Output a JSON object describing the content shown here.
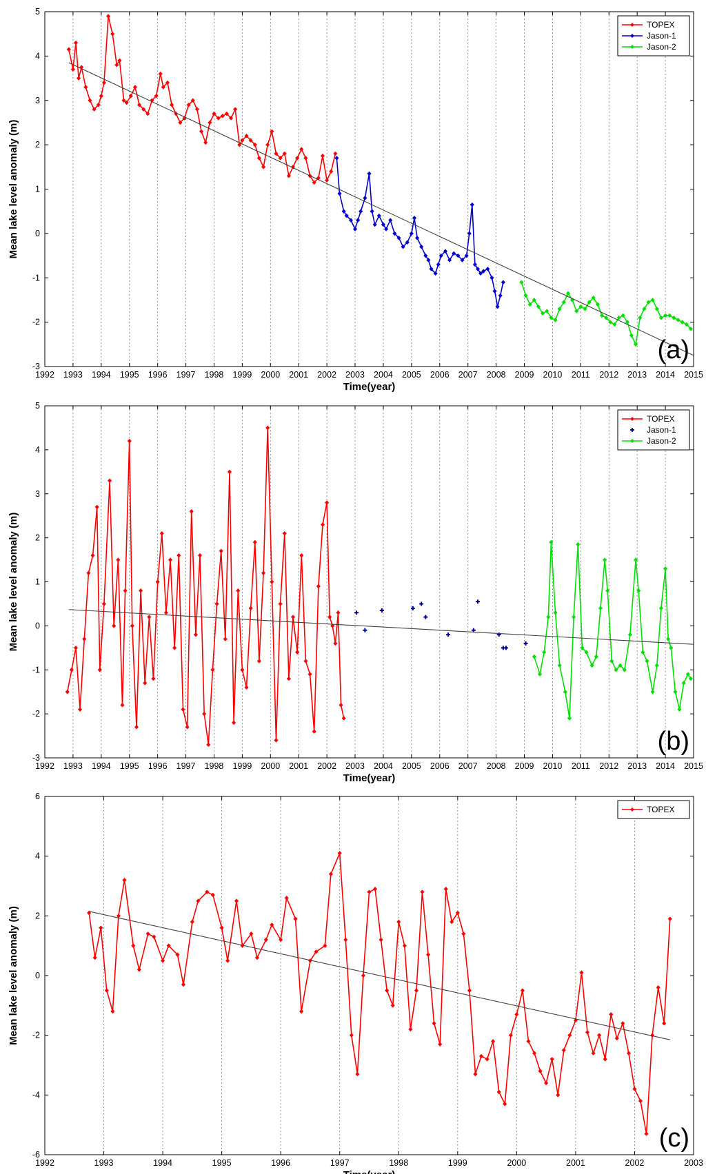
{
  "chart_data": [
    {
      "type": "line",
      "panel_label": "(a)",
      "xlabel": "Time(year)",
      "ylabel": "Mean lake level anomaly (m)",
      "xlim": [
        1992,
        2015
      ],
      "ylim": [
        -3,
        5
      ],
      "xticks": [
        1992,
        1993,
        1994,
        1995,
        1996,
        1997,
        1998,
        1999,
        2000,
        2001,
        2002,
        2003,
        2004,
        2005,
        2006,
        2007,
        2008,
        2009,
        2010,
        2011,
        2012,
        2013,
        2014,
        2015
      ],
      "yticks": [
        -3,
        -2,
        -1,
        0,
        1,
        2,
        3,
        4,
        5
      ],
      "grid": "vertical-dotted",
      "legend_position": "top-right",
      "series": [
        {
          "name": "TOPEX",
          "color": "#ff0000",
          "marker": "diamond",
          "line": true,
          "x": [
            1992.85,
            1993.0,
            1993.1,
            1993.2,
            1993.3,
            1993.45,
            1993.6,
            1993.75,
            1993.9,
            1994.0,
            1994.1,
            1994.25,
            1994.4,
            1994.55,
            1994.65,
            1994.8,
            1994.9,
            1995.05,
            1995.2,
            1995.35,
            1995.5,
            1995.65,
            1995.8,
            1995.95,
            1996.1,
            1996.2,
            1996.35,
            1996.5,
            1996.65,
            1996.8,
            1996.95,
            1997.1,
            1997.25,
            1997.4,
            1997.55,
            1997.7,
            1997.85,
            1998.0,
            1998.15,
            1998.3,
            1998.45,
            1998.6,
            1998.75,
            1998.9,
            1999.0,
            1999.15,
            1999.3,
            1999.45,
            1999.6,
            1999.75,
            1999.9,
            2000.05,
            2000.2,
            2000.35,
            2000.5,
            2000.65,
            2000.8,
            2000.95,
            2001.1,
            2001.25,
            2001.4,
            2001.55,
            2001.7,
            2001.85,
            2002.0,
            2002.15,
            2002.3
          ],
          "y": [
            4.15,
            3.7,
            4.3,
            3.5,
            3.75,
            3.3,
            3.0,
            2.8,
            2.9,
            3.1,
            3.4,
            4.9,
            4.5,
            3.8,
            3.9,
            3.0,
            2.95,
            3.1,
            3.3,
            2.9,
            2.8,
            2.7,
            3.0,
            3.1,
            3.6,
            3.3,
            3.4,
            2.9,
            2.7,
            2.5,
            2.6,
            2.9,
            3.0,
            2.8,
            2.3,
            2.05,
            2.5,
            2.7,
            2.6,
            2.65,
            2.7,
            2.6,
            2.8,
            2.0,
            2.1,
            2.2,
            2.1,
            2.0,
            1.7,
            1.5,
            2.0,
            2.3,
            1.8,
            1.7,
            1.8,
            1.3,
            1.5,
            1.7,
            1.9,
            1.7,
            1.3,
            1.15,
            1.25,
            1.75,
            1.2,
            1.4,
            1.8
          ]
        },
        {
          "name": "Jason-1",
          "color": "#0000cc",
          "marker": "diamond",
          "line": true,
          "x": [
            2002.35,
            2002.45,
            2002.6,
            2002.7,
            2002.85,
            2003.0,
            2003.1,
            2003.2,
            2003.35,
            2003.5,
            2003.6,
            2003.7,
            2003.85,
            2004.0,
            2004.1,
            2004.25,
            2004.4,
            2004.55,
            2004.7,
            2004.85,
            2005.0,
            2005.1,
            2005.2,
            2005.35,
            2005.5,
            2005.6,
            2005.7,
            2005.85,
            2005.95,
            2006.05,
            2006.2,
            2006.35,
            2006.5,
            2006.65,
            2006.8,
            2006.95,
            2007.05,
            2007.15,
            2007.25,
            2007.35,
            2007.45,
            2007.55,
            2007.7,
            2007.85,
            2007.95,
            2008.05,
            2008.15,
            2008.25
          ],
          "y": [
            1.7,
            0.9,
            0.5,
            0.4,
            0.3,
            0.1,
            0.3,
            0.5,
            0.8,
            1.35,
            0.5,
            0.2,
            0.4,
            0.2,
            0.1,
            0.3,
            0.0,
            -0.1,
            -0.3,
            -0.2,
            0.0,
            0.35,
            -0.1,
            -0.3,
            -0.5,
            -0.6,
            -0.8,
            -0.9,
            -0.7,
            -0.5,
            -0.4,
            -0.6,
            -0.45,
            -0.5,
            -0.6,
            -0.5,
            0.0,
            0.65,
            -0.7,
            -0.8,
            -0.9,
            -0.85,
            -0.8,
            -1.0,
            -1.3,
            -1.65,
            -1.4,
            -1.1
          ]
        },
        {
          "name": "Jason-2",
          "color": "#00e000",
          "marker": "diamond",
          "line": true,
          "x": [
            2008.9,
            2009.05,
            2009.2,
            2009.35,
            2009.5,
            2009.65,
            2009.8,
            2009.95,
            2010.1,
            2010.25,
            2010.4,
            2010.55,
            2010.7,
            2010.85,
            2011.0,
            2011.15,
            2011.3,
            2011.45,
            2011.6,
            2011.75,
            2011.9,
            2012.05,
            2012.2,
            2012.35,
            2012.5,
            2012.65,
            2012.8,
            2012.95,
            2013.1,
            2013.25,
            2013.4,
            2013.55,
            2013.7,
            2013.85,
            2014.0,
            2014.15,
            2014.3,
            2014.45,
            2014.6,
            2014.75,
            2014.9
          ],
          "y": [
            -1.1,
            -1.4,
            -1.6,
            -1.5,
            -1.65,
            -1.8,
            -1.75,
            -1.9,
            -1.95,
            -1.7,
            -1.55,
            -1.35,
            -1.5,
            -1.75,
            -1.65,
            -1.7,
            -1.55,
            -1.45,
            -1.6,
            -1.85,
            -1.9,
            -2.0,
            -2.05,
            -1.9,
            -1.85,
            -2.0,
            -2.3,
            -2.5,
            -1.9,
            -1.7,
            -1.55,
            -1.5,
            -1.7,
            -1.9,
            -1.85,
            -1.85,
            -1.9,
            -1.95,
            -2.0,
            -2.05,
            -2.15
          ]
        }
      ],
      "trendline": {
        "x": [
          1992.85,
          2015.0
        ],
        "y": [
          3.85,
          -2.75
        ],
        "color": "#404040"
      }
    },
    {
      "type": "line",
      "panel_label": "(b)",
      "xlabel": "Time(year)",
      "ylabel": "Mean lake level anomaly (m)",
      "xlim": [
        1992,
        2015
      ],
      "ylim": [
        -3,
        5
      ],
      "xticks": [
        1992,
        1993,
        1994,
        1995,
        1996,
        1997,
        1998,
        1999,
        2000,
        2001,
        2002,
        2003,
        2004,
        2005,
        2006,
        2007,
        2008,
        2009,
        2010,
        2011,
        2012,
        2013,
        2014,
        2015
      ],
      "yticks": [
        -3,
        -2,
        -1,
        0,
        1,
        2,
        3,
        4,
        5
      ],
      "grid": "vertical-dotted",
      "legend_position": "top-right",
      "series": [
        {
          "name": "TOPEX",
          "color": "#ff0000",
          "marker": "diamond",
          "line": true,
          "x": [
            1992.8,
            1992.95,
            1993.1,
            1993.25,
            1993.4,
            1993.55,
            1993.7,
            1993.85,
            1993.95,
            1994.1,
            1994.3,
            1994.45,
            1994.6,
            1994.75,
            1994.85,
            1995.0,
            1995.1,
            1995.25,
            1995.4,
            1995.55,
            1995.7,
            1995.85,
            1996.0,
            1996.15,
            1996.3,
            1996.45,
            1996.6,
            1996.75,
            1996.9,
            1997.05,
            1997.2,
            1997.35,
            1997.5,
            1997.65,
            1997.8,
            1997.95,
            1998.1,
            1998.25,
            1998.4,
            1998.55,
            1998.7,
            1998.85,
            1999.0,
            1999.15,
            1999.3,
            1999.45,
            1999.6,
            1999.75,
            1999.9,
            2000.05,
            2000.2,
            2000.35,
            2000.5,
            2000.65,
            2000.8,
            2000.95,
            2001.1,
            2001.25,
            2001.4,
            2001.55,
            2001.7,
            2001.85,
            2002.0,
            2002.1,
            2002.2,
            2002.3,
            2002.4,
            2002.5,
            2002.6
          ],
          "y": [
            -1.5,
            -1.0,
            -0.5,
            -1.9,
            -0.3,
            1.2,
            1.6,
            2.7,
            -1.0,
            0.5,
            3.3,
            0.0,
            1.5,
            -1.8,
            0.8,
            4.2,
            0.0,
            -2.3,
            0.8,
            -1.3,
            0.2,
            -1.2,
            1.0,
            2.1,
            0.3,
            1.5,
            -0.5,
            1.6,
            -1.9,
            -2.3,
            2.6,
            -0.2,
            1.6,
            -2.0,
            -2.7,
            -1.0,
            0.5,
            1.7,
            -0.3,
            3.5,
            -2.2,
            0.8,
            -1.0,
            -1.4,
            0.4,
            1.9,
            -0.8,
            1.2,
            4.5,
            1.0,
            -2.6,
            0.5,
            2.1,
            -1.2,
            0.2,
            -0.6,
            1.6,
            -0.8,
            -1.1,
            -2.4,
            0.9,
            2.3,
            2.8,
            0.2,
            0.0,
            -0.4,
            0.3,
            -1.8,
            -2.1
          ]
        },
        {
          "name": "Jason-1",
          "color": "#000099",
          "marker": "plus",
          "line": false,
          "x": [
            2003.05,
            2003.35,
            2003.95,
            2005.05,
            2005.35,
            2005.5,
            2006.3,
            2007.2,
            2007.35,
            2008.1,
            2008.25,
            2008.35,
            2009.05
          ],
          "y": [
            0.3,
            -0.1,
            0.35,
            0.4,
            0.5,
            0.2,
            -0.2,
            -0.1,
            0.55,
            -0.2,
            -0.5,
            -0.5,
            -0.4
          ]
        },
        {
          "name": "Jason-2",
          "color": "#00e000",
          "marker": "diamond",
          "line": true,
          "x": [
            2009.35,
            2009.55,
            2009.7,
            2009.85,
            2009.95,
            2010.1,
            2010.25,
            2010.45,
            2010.6,
            2010.75,
            2010.9,
            2011.05,
            2011.2,
            2011.4,
            2011.55,
            2011.7,
            2011.85,
            2011.95,
            2012.1,
            2012.25,
            2012.4,
            2012.55,
            2012.75,
            2012.95,
            2013.05,
            2013.2,
            2013.35,
            2013.55,
            2013.7,
            2013.85,
            2014.0,
            2014.1,
            2014.2,
            2014.35,
            2014.5,
            2014.65,
            2014.8,
            2014.9
          ],
          "y": [
            -0.7,
            -1.1,
            -0.6,
            0.2,
            1.9,
            0.3,
            -0.9,
            -1.5,
            -2.1,
            0.2,
            1.85,
            -0.5,
            -0.6,
            -0.9,
            -0.7,
            0.4,
            1.5,
            0.8,
            -0.8,
            -1.0,
            -0.9,
            -1.0,
            -0.2,
            1.5,
            0.8,
            -0.6,
            -0.8,
            -1.5,
            -0.9,
            0.4,
            1.3,
            -0.3,
            -0.5,
            -1.5,
            -1.9,
            -1.3,
            -1.1,
            -1.2
          ]
        }
      ],
      "trendline": {
        "x": [
          1992.85,
          2015.0
        ],
        "y": [
          0.37,
          -0.42
        ],
        "color": "#404040"
      }
    },
    {
      "type": "line",
      "panel_label": "(c)",
      "xlabel": "Time(year)",
      "ylabel": "Mean lake level anomaly (m)",
      "xlim": [
        1992,
        2003
      ],
      "ylim": [
        -6,
        6
      ],
      "xticks": [
        1992,
        1993,
        1994,
        1995,
        1996,
        1997,
        1998,
        1999,
        2000,
        2001,
        2002,
        2003
      ],
      "yticks": [
        -6,
        -4,
        -2,
        0,
        2,
        4,
        6
      ],
      "grid": "vertical-dotted",
      "legend_position": "top-right",
      "series": [
        {
          "name": "TOPEX",
          "color": "#ff0000",
          "marker": "diamond",
          "line": true,
          "x": [
            1992.75,
            1992.85,
            1992.95,
            1993.05,
            1993.15,
            1993.25,
            1993.35,
            1993.5,
            1993.6,
            1993.75,
            1993.85,
            1994.0,
            1994.1,
            1994.25,
            1994.35,
            1994.5,
            1994.6,
            1994.75,
            1994.85,
            1995.0,
            1995.1,
            1995.25,
            1995.35,
            1995.5,
            1995.6,
            1995.75,
            1995.85,
            1996.0,
            1996.1,
            1996.25,
            1996.35,
            1996.5,
            1996.6,
            1996.75,
            1996.85,
            1997.0,
            1997.1,
            1997.2,
            1997.3,
            1997.4,
            1997.5,
            1997.6,
            1997.7,
            1997.8,
            1997.9,
            1998.0,
            1998.1,
            1998.2,
            1998.3,
            1998.4,
            1998.5,
            1998.6,
            1998.7,
            1998.8,
            1998.9,
            1999.0,
            1999.1,
            1999.2,
            1999.3,
            1999.4,
            1999.5,
            1999.6,
            1999.7,
            1999.8,
            1999.9,
            2000.0,
            2000.1,
            2000.2,
            2000.3,
            2000.4,
            2000.5,
            2000.6,
            2000.7,
            2000.8,
            2000.9,
            2001.0,
            2001.1,
            2001.2,
            2001.3,
            2001.4,
            2001.5,
            2001.6,
            2001.7,
            2001.8,
            2001.9,
            2002.0,
            2002.1,
            2002.2,
            2002.3,
            2002.4,
            2002.5,
            2002.6
          ],
          "y": [
            2.1,
            0.6,
            1.6,
            -0.5,
            -1.2,
            2.0,
            3.2,
            1.0,
            0.2,
            1.4,
            1.3,
            0.5,
            1.0,
            0.7,
            -0.3,
            1.8,
            2.5,
            2.8,
            2.7,
            1.6,
            0.5,
            2.5,
            1.0,
            1.4,
            0.6,
            1.2,
            1.7,
            1.2,
            2.6,
            1.9,
            -1.2,
            0.5,
            0.8,
            1.0,
            3.4,
            4.1,
            1.2,
            -2.0,
            -3.3,
            0.0,
            2.8,
            2.9,
            1.2,
            -0.5,
            -1.0,
            1.8,
            1.0,
            -1.8,
            -0.5,
            2.8,
            0.7,
            -1.6,
            -2.3,
            2.9,
            1.8,
            2.1,
            1.4,
            -0.5,
            -3.3,
            -2.7,
            -2.8,
            -2.2,
            -3.9,
            -4.3,
            -2.0,
            -1.3,
            -0.5,
            -2.2,
            -2.6,
            -3.2,
            -3.6,
            -2.8,
            -4.0,
            -2.5,
            -2.0,
            -1.5,
            0.1,
            -1.9,
            -2.6,
            -2.0,
            -2.8,
            -1.3,
            -2.1,
            -1.6,
            -2.6,
            -3.8,
            -4.2,
            -5.3,
            -2.0,
            -0.4,
            -1.6,
            1.9
          ]
        }
      ],
      "trendline": {
        "x": [
          1992.75,
          2002.6
        ],
        "y": [
          2.15,
          -2.15
        ],
        "color": "#404040"
      }
    }
  ]
}
